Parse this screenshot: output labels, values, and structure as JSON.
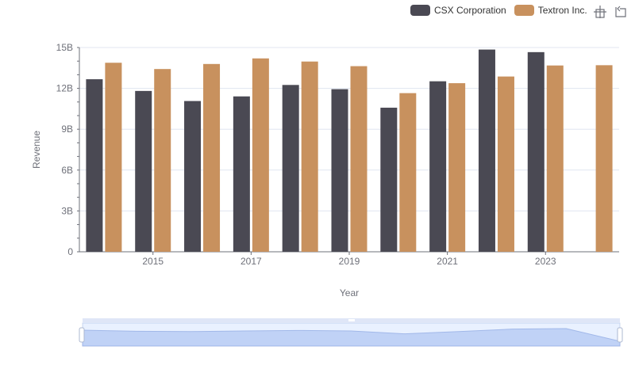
{
  "legend": [
    {
      "name": "CSX Corporation",
      "color": "#4a4953"
    },
    {
      "name": "Textron Inc.",
      "color": "#c8915e"
    }
  ],
  "toolbox": {
    "icons": [
      "zoom-icon",
      "restore-icon"
    ]
  },
  "chart_data": {
    "type": "bar",
    "xlabel": "Year",
    "ylabel": "Revenue",
    "ylim": [
      0,
      15
    ],
    "y_unit": "B",
    "yticks": [
      "0",
      "3B",
      "6B",
      "9B",
      "12B",
      "15B"
    ],
    "categories": [
      "2014",
      "2015",
      "2016",
      "2017",
      "2018",
      "2019",
      "2020",
      "2021",
      "2022",
      "2023",
      "2024"
    ],
    "xtick_labels": [
      "2015",
      "2017",
      "2019",
      "2021",
      "2023"
    ],
    "grid": true,
    "legend_position": "top-right",
    "series": [
      {
        "name": "CSX Corporation",
        "color": "#4a4953",
        "values": [
          12.67,
          11.81,
          11.07,
          11.41,
          12.25,
          11.94,
          10.58,
          12.52,
          14.85,
          14.66,
          null
        ]
      },
      {
        "name": "Textron Inc.",
        "color": "#c8915e",
        "values": [
          13.88,
          13.42,
          13.79,
          14.2,
          13.97,
          13.63,
          11.65,
          12.38,
          12.87,
          13.68,
          13.7
        ]
      }
    ]
  }
}
